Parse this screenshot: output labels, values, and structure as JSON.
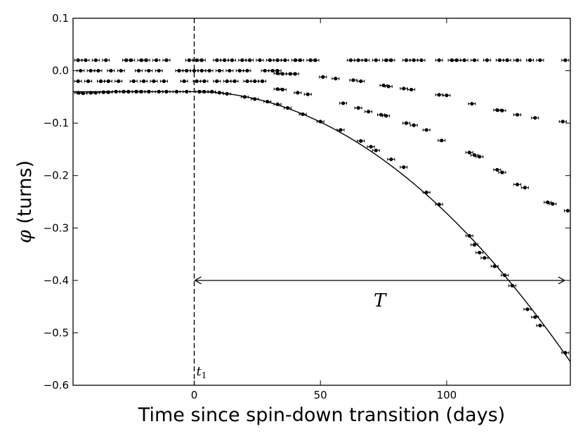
{
  "chart_data": {
    "type": "scatter",
    "xlabel": "Time since spin-down transition (days)",
    "ylabel_symbol": "φ",
    "ylabel_rest": " (turns)",
    "xlim": [
      -48,
      149
    ],
    "ylim": [
      -0.6,
      0.1
    ],
    "x_ticks": [
      0,
      50,
      100
    ],
    "x_tick_labels": [
      "0",
      "50",
      "100"
    ],
    "y_ticks": [
      0.1,
      0.0,
      -0.1,
      -0.2,
      -0.3,
      -0.4,
      -0.5,
      -0.6
    ],
    "y_tick_labels": [
      "0.1",
      "0.0",
      "−0.1",
      "−0.2",
      "−0.3",
      "−0.4",
      "−0.5",
      "−0.6"
    ],
    "grid": false,
    "legend": "none",
    "transition_line": {
      "x": 0,
      "label_main": "t",
      "label_sub": "1"
    },
    "period_annotation": {
      "x_start": 0,
      "x_end": 147,
      "y": -0.4,
      "label": "T"
    },
    "model_curve": {
      "type": "quadratic",
      "t0": 0,
      "y0": -0.04,
      "coef": 2.32e-05
    },
    "phase_branches": [
      0.02,
      0.0,
      -0.02,
      -0.04
    ],
    "scatter_points": [
      [
        -46,
        0.02
      ],
      [
        -43,
        0.02
      ],
      [
        -39,
        0.02
      ],
      [
        -35,
        0.02
      ],
      [
        -27,
        0.02
      ],
      [
        -25,
        0.02
      ],
      [
        -21,
        0.02
      ],
      [
        -19,
        0.02
      ],
      [
        -15,
        0.02
      ],
      [
        -11,
        0.02
      ],
      [
        -2,
        0.02
      ],
      [
        1,
        0.02
      ],
      [
        3,
        0.02
      ],
      [
        9,
        0.02
      ],
      [
        12,
        0.02
      ],
      [
        15,
        0.02
      ],
      [
        19,
        0.02
      ],
      [
        22,
        0.02
      ],
      [
        26,
        0.02
      ],
      [
        30,
        0.02
      ],
      [
        33,
        0.02
      ],
      [
        36,
        0.02
      ],
      [
        40,
        0.02
      ],
      [
        42,
        0.02
      ],
      [
        46,
        0.02
      ],
      [
        48,
        0.02
      ],
      [
        62,
        0.02
      ],
      [
        65,
        0.02
      ],
      [
        68,
        0.02
      ],
      [
        72,
        0.02
      ],
      [
        76,
        0.02
      ],
      [
        78,
        0.02
      ],
      [
        84,
        0.02
      ],
      [
        87,
        0.02
      ],
      [
        90,
        0.02
      ],
      [
        97,
        0.02
      ],
      [
        102,
        0.02
      ],
      [
        104,
        0.02
      ],
      [
        107,
        0.02
      ],
      [
        111,
        0.02
      ],
      [
        116,
        0.02
      ],
      [
        121,
        0.02
      ],
      [
        124,
        0.02
      ],
      [
        128,
        0.02
      ],
      [
        133,
        0.02
      ],
      [
        137,
        0.02
      ],
      [
        147,
        0.02
      ],
      [
        -45,
        0.0
      ],
      [
        -41,
        0.0
      ],
      [
        -38,
        0.0
      ],
      [
        -33,
        0.0
      ],
      [
        -29,
        0.0
      ],
      [
        -22,
        0.0
      ],
      [
        -18,
        0.0
      ],
      [
        -14,
        0.0
      ],
      [
        -6,
        0.0
      ],
      [
        -3,
        0.0
      ],
      [
        0,
        0.0
      ],
      [
        3,
        0.0
      ],
      [
        6,
        0.0
      ],
      [
        10,
        0.0
      ],
      [
        14,
        0.0
      ],
      [
        18,
        0.0
      ],
      [
        21,
        0.0
      ],
      [
        28,
        0.0
      ],
      [
        31,
        0.0
      ],
      [
        33,
        0.0
      ],
      [
        -46,
        -0.02
      ],
      [
        -42,
        -0.02
      ],
      [
        -37,
        -0.02
      ],
      [
        -34,
        -0.02
      ],
      [
        -30,
        -0.02
      ],
      [
        -24,
        -0.02
      ],
      [
        -20,
        -0.02
      ],
      [
        -16,
        -0.02
      ],
      [
        -12,
        -0.02
      ],
      [
        -4,
        -0.02
      ],
      [
        1,
        -0.02
      ],
      [
        4,
        -0.02
      ],
      [
        9,
        -0.02
      ],
      [
        13,
        -0.02
      ],
      [
        16,
        -0.02
      ],
      [
        21,
        -0.02
      ],
      [
        24,
        -0.02
      ],
      [
        27,
        -0.02
      ],
      [
        -46,
        -0.042
      ],
      [
        -44,
        -0.043
      ],
      [
        -41,
        -0.042
      ],
      [
        -39,
        -0.042
      ],
      [
        -36,
        -0.041
      ],
      [
        -34,
        -0.041
      ],
      [
        -31,
        -0.04
      ],
      [
        -28,
        -0.04
      ],
      [
        -26,
        -0.04
      ],
      [
        -23,
        -0.04
      ],
      [
        -21,
        -0.04
      ],
      [
        -18,
        -0.04
      ],
      [
        -14,
        -0.04
      ],
      [
        -11,
        -0.04
      ],
      [
        -7,
        -0.04
      ],
      [
        -3,
        -0.04
      ],
      [
        2,
        -0.04
      ],
      [
        4,
        -0.04
      ],
      [
        7,
        -0.04
      ],
      [
        10,
        -0.042
      ],
      [
        13,
        -0.044
      ],
      [
        33,
        -0.005
      ],
      [
        35,
        -0.006
      ],
      [
        38,
        -0.006
      ],
      [
        40,
        -0.006
      ],
      [
        51,
        -0.012
      ],
      [
        56,
        -0.015
      ],
      [
        63,
        -0.018
      ],
      [
        66,
        -0.02
      ],
      [
        33,
        -0.035
      ],
      [
        35,
        -0.036
      ],
      [
        41,
        -0.042
      ],
      [
        45,
        -0.045
      ],
      [
        59,
        -0.062
      ],
      [
        65,
        -0.071
      ],
      [
        69,
        -0.078
      ],
      [
        74,
        -0.084
      ],
      [
        76,
        -0.086
      ],
      [
        84,
        -0.1
      ],
      [
        87,
        -0.104
      ],
      [
        92,
        -0.113
      ],
      [
        98,
        -0.133
      ],
      [
        109,
        -0.156
      ],
      [
        111,
        -0.161
      ],
      [
        113,
        -0.164
      ],
      [
        120,
        -0.189
      ],
      [
        122,
        -0.194
      ],
      [
        128,
        -0.217
      ],
      [
        131,
        -0.223
      ],
      [
        140,
        -0.251
      ],
      [
        142,
        -0.254
      ],
      [
        148,
        -0.267
      ],
      [
        75,
        -0.028
      ],
      [
        77,
        -0.03
      ],
      [
        83,
        -0.034
      ],
      [
        86,
        -0.036
      ],
      [
        97,
        -0.046
      ],
      [
        100,
        -0.047
      ],
      [
        110,
        -0.063
      ],
      [
        120,
        -0.075
      ],
      [
        122,
        -0.076
      ],
      [
        128,
        -0.084
      ],
      [
        135,
        -0.09
      ],
      [
        146,
        -0.097
      ],
      [
        20,
        -0.05
      ],
      [
        24,
        -0.054
      ],
      [
        29,
        -0.059
      ],
      [
        33,
        -0.064
      ],
      [
        37,
        -0.071
      ],
      [
        43,
        -0.083
      ],
      [
        50,
        -0.097
      ],
      [
        58,
        -0.113
      ],
      [
        66,
        -0.134
      ],
      [
        70,
        -0.145
      ],
      [
        72,
        -0.152
      ],
      [
        78,
        -0.169
      ],
      [
        83,
        -0.184
      ],
      [
        92,
        -0.232
      ],
      [
        97,
        -0.255
      ],
      [
        109,
        -0.315
      ],
      [
        111,
        -0.332
      ],
      [
        113,
        -0.347
      ],
      [
        115,
        -0.357
      ],
      [
        119,
        -0.373
      ],
      [
        123,
        -0.39
      ],
      [
        126,
        -0.41
      ],
      [
        132,
        -0.455
      ],
      [
        135,
        -0.47
      ],
      [
        137,
        -0.486
      ],
      [
        147,
        -0.538
      ]
    ]
  }
}
